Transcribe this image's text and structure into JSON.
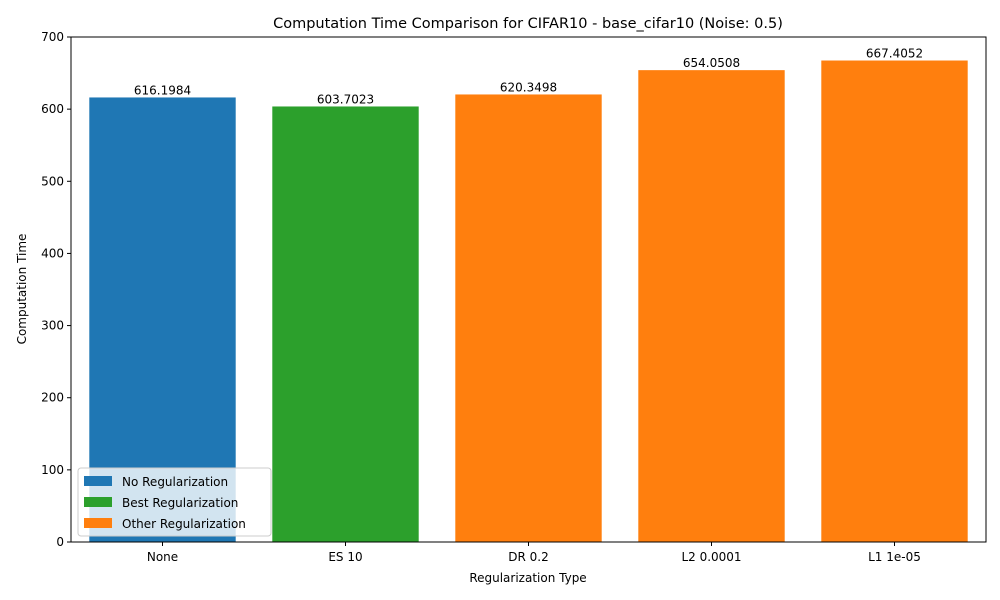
{
  "chart_data": {
    "type": "bar",
    "title": "Computation Time Comparison for CIFAR10 - base_cifar10 (Noise: 0.5)",
    "xlabel": "Regularization Type",
    "ylabel": "Computation Time",
    "categories": [
      "None",
      "ES 10",
      "DR 0.2",
      "L2 0.0001",
      "L1 1e-05"
    ],
    "values": [
      616.1984,
      603.7023,
      620.3498,
      654.0508,
      667.4052
    ],
    "value_labels": [
      "616.1984",
      "603.7023",
      "620.3498",
      "654.0508",
      "667.4052"
    ],
    "bar_groups": [
      "No Regularization",
      "Best Regularization",
      "Other Regularization",
      "Other Regularization",
      "Other Regularization"
    ],
    "ylim": [
      0,
      700
    ],
    "yticks": [
      0,
      100,
      200,
      300,
      400,
      500,
      600,
      700
    ],
    "ytick_labels": [
      "0",
      "100",
      "200",
      "300",
      "400",
      "500",
      "600",
      "700"
    ],
    "grid": false,
    "legend_position": "lower-left",
    "legend": [
      {
        "label": "No Regularization",
        "color": "#1f77b4"
      },
      {
        "label": "Best Regularization",
        "color": "#2ca02c"
      },
      {
        "label": "Other Regularization",
        "color": "#ff7f0e"
      }
    ]
  }
}
